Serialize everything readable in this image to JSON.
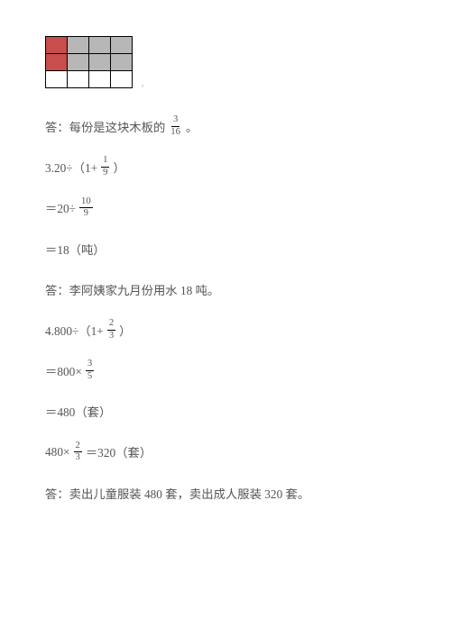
{
  "font": {
    "size_pt": 10,
    "color": "#555555",
    "frac_size_pt": 8
  },
  "grid": {
    "rows": 3,
    "cols": 4,
    "cell_colors": [
      [
        "#c84d4d",
        "#b7b7b7",
        "#b7b7b7",
        "#b7b7b7"
      ],
      [
        "#c84d4d",
        "#b7b7b7",
        "#b7b7b7",
        "#b7b7b7"
      ],
      [
        "#ffffff",
        "#ffffff",
        "#ffffff",
        "#ffffff"
      ]
    ],
    "trailing_mark": "。",
    "border_color": "#000000"
  },
  "lines": {
    "ans1_pre": "答：每份是这块木板的",
    "ans1_frac": {
      "num": "3",
      "den": "16"
    },
    "ans1_post": "。",
    "p3_pre": "3.20÷（1+",
    "p3_frac": {
      "num": "1",
      "den": "9"
    },
    "p3_post": "）",
    "p3s1_pre": "＝20÷",
    "p3s1_frac": {
      "num": "10",
      "den": "9"
    },
    "p3s2": "＝18（吨）",
    "ans3": "答：李阿姨家九月份用水 18 吨。",
    "p4_pre": "4.800÷（1+",
    "p4_frac": {
      "num": "2",
      "den": "3"
    },
    "p4_post": "）",
    "p4s1_pre": "＝800×",
    "p4s1_frac": {
      "num": "3",
      "den": "5"
    },
    "p4s2": "＝480（套）",
    "p4s3_pre": "480×",
    "p4s3_frac": {
      "num": "2",
      "den": "3"
    },
    "p4s3_post": "＝320（套）",
    "ans4": "答：卖出儿童服装 480 套，卖出成人服装 320 套。"
  }
}
